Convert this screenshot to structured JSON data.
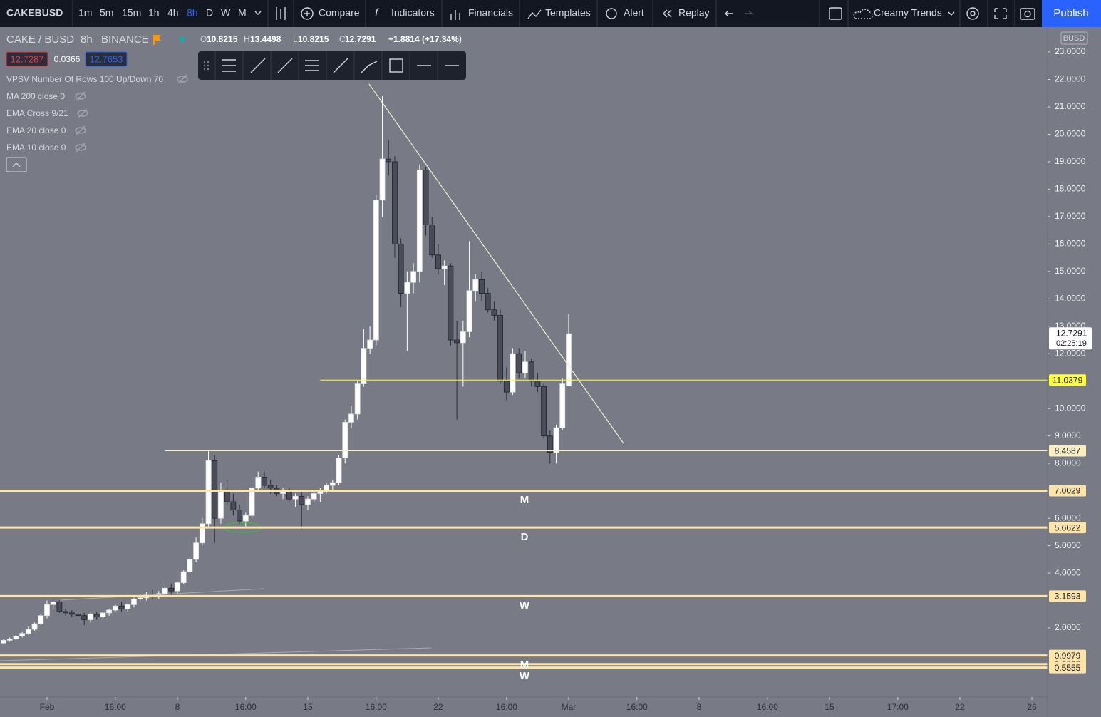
{
  "toolbar": {
    "symbol": "CAKEBUSD",
    "intervals": [
      "1m",
      "5m",
      "15m",
      "1h",
      "4h",
      "8h",
      "D",
      "W",
      "M"
    ],
    "buttons": [
      "Compare",
      "Indicators",
      "Financials",
      "Templates",
      "Alert",
      "Replay"
    ],
    "layout_name": "Creamy Trends",
    "publish": "Publish"
  },
  "legend": {
    "symbol": "CAKE / BUSD",
    "interval": "8h",
    "exchange": "BINANCE",
    "ohlc_keys": [
      "O",
      "H",
      "L",
      "C"
    ],
    "ohlc_values": [
      10.8215,
      13.4498,
      10.8215,
      12.7291
    ],
    "change": "+1.8814 (+17.34%)",
    "bid": 12.7287,
    "spread": 0.0366,
    "ask": 12.7653,
    "indicators": [
      "VPSV Number Of Rows 100 Up/Down 70",
      "MA 200 close 0",
      "EMA Cross 9/21",
      "EMA 20 close 0",
      "EMA 10 close 0"
    ],
    "currency": "BUSD"
  },
  "chart_data": {
    "type": "candlestick",
    "up_color": "#ffffff",
    "down_color": "#4a4d58",
    "xlim": [
      -7.57,
      161.12
    ],
    "ylim": [
      -0.52,
      23.91
    ],
    "xticks": [
      {
        "value": 0,
        "label": "Feb"
      },
      {
        "value": 11,
        "label": "16:00"
      },
      {
        "value": 21,
        "label": "8"
      },
      {
        "value": 32,
        "label": "16:00"
      },
      {
        "value": 42,
        "label": "15"
      },
      {
        "value": 53,
        "label": "16:00"
      },
      {
        "value": 63,
        "label": "22"
      },
      {
        "value": 74,
        "label": "16:00"
      },
      {
        "value": 84,
        "label": "Mar"
      },
      {
        "value": 95,
        "label": "16:00"
      },
      {
        "value": 105,
        "label": "8"
      },
      {
        "value": 116,
        "label": "16:00"
      },
      {
        "value": 126,
        "label": "15"
      },
      {
        "value": 137,
        "label": "17:00"
      },
      {
        "value": 147,
        "label": "22"
      },
      {
        "value": 158.6,
        "label": "26"
      }
    ],
    "yticks": [
      {
        "value": 2,
        "label": "2.0000"
      },
      {
        "value": 4,
        "label": "4.0000"
      },
      {
        "value": 5,
        "label": "5.0000"
      },
      {
        "value": 6,
        "label": "6.0000"
      },
      {
        "value": 8,
        "label": "8.0000"
      },
      {
        "value": 9,
        "label": "9.0000"
      },
      {
        "value": 10,
        "label": "10.0000"
      },
      {
        "value": 12,
        "label": "12.0000"
      },
      {
        "value": 13,
        "label": "13.0000"
      },
      {
        "value": 14,
        "label": "14.0000"
      },
      {
        "value": 15,
        "label": "15.0000"
      },
      {
        "value": 16,
        "label": "16.0000"
      },
      {
        "value": 17,
        "label": "17.0000"
      },
      {
        "value": 18,
        "label": "18.0000"
      },
      {
        "value": 19,
        "label": "19.0000"
      },
      {
        "value": 20,
        "label": "20.0000"
      },
      {
        "value": 21,
        "label": "21.0000"
      },
      {
        "value": 22,
        "label": "22.0000"
      },
      {
        "value": 23,
        "label": "23.0000"
      }
    ],
    "x": [
      -7,
      -6,
      -5,
      -4,
      -3,
      -2,
      -1,
      0,
      1,
      2,
      3,
      4,
      5,
      6,
      7,
      8,
      9,
      10,
      11,
      12,
      13,
      14,
      15,
      16,
      17,
      18,
      19,
      20,
      21,
      22,
      23,
      24,
      25,
      26,
      27,
      28,
      29,
      30,
      31,
      32,
      33,
      34,
      35,
      36,
      37,
      38,
      39,
      40,
      41,
      42,
      43,
      44,
      45,
      46,
      47,
      48,
      49,
      50,
      51,
      52,
      53,
      54,
      55,
      56,
      57,
      58,
      59,
      60,
      61,
      62,
      63,
      64,
      65,
      66,
      67,
      68,
      69,
      70,
      71,
      72,
      73,
      74,
      75,
      76,
      77,
      78,
      79,
      80,
      81,
      82,
      83,
      84
    ],
    "ohlc": [
      [
        1.45,
        1.6,
        1.4,
        1.55
      ],
      [
        1.55,
        1.65,
        1.5,
        1.6
      ],
      [
        1.6,
        1.75,
        1.55,
        1.7
      ],
      [
        1.7,
        1.85,
        1.65,
        1.8
      ],
      [
        1.8,
        2.05,
        1.75,
        1.95
      ],
      [
        1.95,
        2.2,
        1.9,
        2.15
      ],
      [
        2.15,
        2.5,
        2.1,
        2.45
      ],
      [
        2.45,
        3.0,
        2.35,
        2.85
      ],
      [
        2.85,
        3.0,
        2.7,
        2.95
      ],
      [
        2.95,
        3.0,
        2.55,
        2.6
      ],
      [
        2.6,
        2.7,
        2.45,
        2.55
      ],
      [
        2.55,
        2.65,
        2.4,
        2.5
      ],
      [
        2.5,
        2.6,
        2.4,
        2.45
      ],
      [
        2.45,
        2.55,
        2.1,
        2.3
      ],
      [
        2.3,
        2.55,
        2.2,
        2.5
      ],
      [
        2.5,
        2.6,
        2.3,
        2.4
      ],
      [
        2.4,
        2.6,
        2.35,
        2.55
      ],
      [
        2.55,
        2.7,
        2.45,
        2.65
      ],
      [
        2.65,
        2.85,
        2.6,
        2.8
      ],
      [
        2.8,
        2.95,
        2.6,
        2.7
      ],
      [
        2.7,
        2.9,
        2.6,
        2.85
      ],
      [
        2.85,
        3.1,
        2.75,
        3.05
      ],
      [
        3.05,
        3.25,
        2.95,
        3.1
      ],
      [
        3.1,
        3.3,
        3.0,
        3.2
      ],
      [
        3.2,
        3.4,
        3.05,
        3.15
      ],
      [
        3.15,
        3.35,
        3.05,
        3.25
      ],
      [
        3.25,
        3.5,
        3.2,
        3.45
      ],
      [
        3.45,
        3.6,
        3.2,
        3.35
      ],
      [
        3.35,
        3.7,
        3.25,
        3.65
      ],
      [
        3.65,
        4.1,
        3.6,
        4.05
      ],
      [
        4.05,
        4.6,
        3.95,
        4.5
      ],
      [
        4.5,
        5.3,
        4.4,
        5.1
      ],
      [
        5.1,
        6.0,
        5.0,
        5.8
      ],
      [
        5.8,
        8.45,
        5.7,
        8.1
      ],
      [
        8.1,
        8.3,
        5.1,
        6.0
      ],
      [
        6.0,
        7.3,
        5.8,
        7.0
      ],
      [
        7.0,
        7.4,
        6.5,
        6.6
      ],
      [
        6.6,
        6.9,
        6.1,
        6.3
      ],
      [
        6.3,
        6.5,
        5.8,
        5.9
      ],
      [
        5.9,
        6.2,
        5.7,
        6.1
      ],
      [
        6.1,
        7.3,
        6.0,
        7.1
      ],
      [
        7.1,
        7.7,
        7.0,
        7.5
      ],
      [
        7.5,
        7.7,
        7.1,
        7.2
      ],
      [
        7.2,
        7.4,
        6.9,
        7.1
      ],
      [
        7.1,
        7.2,
        6.8,
        6.9
      ],
      [
        6.9,
        7.1,
        6.7,
        7.0
      ],
      [
        7.0,
        7.1,
        6.6,
        6.7
      ],
      [
        6.7,
        6.9,
        6.4,
        6.8
      ],
      [
        6.8,
        7.0,
        5.6,
        6.5
      ],
      [
        6.5,
        6.8,
        6.3,
        6.7
      ],
      [
        6.7,
        7.0,
        6.6,
        6.9
      ],
      [
        6.9,
        7.1,
        6.6,
        7.0
      ],
      [
        7.0,
        7.3,
        6.9,
        7.2
      ],
      [
        7.2,
        7.4,
        7.0,
        7.3
      ],
      [
        7.3,
        8.3,
        7.2,
        8.2
      ],
      [
        8.2,
        9.6,
        8.0,
        9.5
      ],
      [
        9.5,
        10.1,
        9.3,
        9.8
      ],
      [
        9.8,
        11.0,
        9.6,
        10.9
      ],
      [
        10.9,
        12.9,
        10.8,
        12.2
      ],
      [
        12.2,
        13.0,
        12.0,
        12.5
      ],
      [
        12.5,
        17.8,
        12.3,
        17.6
      ],
      [
        17.6,
        21.4,
        17.0,
        19.1
      ],
      [
        19.1,
        19.8,
        18.5,
        19.0
      ],
      [
        19.0,
        19.2,
        15.5,
        16.0
      ],
      [
        16.0,
        16.2,
        13.7,
        14.2
      ],
      [
        14.2,
        15.0,
        12.1,
        14.6
      ],
      [
        14.6,
        15.3,
        14.2,
        15.0
      ],
      [
        15.0,
        18.9,
        14.6,
        18.7
      ],
      [
        18.7,
        18.8,
        16.3,
        16.7
      ],
      [
        16.7,
        17.0,
        15.5,
        15.6
      ],
      [
        15.6,
        16.0,
        14.9,
        15.1
      ],
      [
        15.1,
        15.4,
        14.5,
        15.2
      ],
      [
        15.2,
        15.3,
        12.3,
        12.5
      ],
      [
        12.5,
        13.2,
        9.6,
        12.4
      ],
      [
        12.4,
        13.2,
        10.8,
        12.8
      ],
      [
        12.8,
        16.1,
        12.6,
        14.3
      ],
      [
        14.3,
        14.9,
        13.9,
        14.7
      ],
      [
        14.7,
        15.0,
        13.9,
        14.2
      ],
      [
        14.2,
        14.4,
        13.5,
        13.6
      ],
      [
        13.6,
        13.9,
        13.2,
        13.4
      ],
      [
        13.4,
        13.6,
        10.9,
        11.0
      ],
      [
        11.0,
        11.5,
        10.3,
        10.6
      ],
      [
        10.6,
        12.2,
        10.5,
        12.0
      ],
      [
        12.0,
        12.2,
        11.1,
        11.3
      ],
      [
        11.3,
        12.1,
        11.1,
        11.7
      ],
      [
        11.7,
        11.8,
        10.8,
        11.0
      ],
      [
        11.0,
        11.3,
        10.6,
        10.8
      ],
      [
        10.8,
        10.9,
        8.9,
        9.0
      ],
      [
        9.0,
        9.2,
        8.0,
        8.4
      ],
      [
        8.4,
        9.4,
        8.0,
        9.3
      ],
      [
        9.3,
        11.1,
        9.2,
        10.9
      ],
      [
        10.8215,
        13.4498,
        10.8215,
        12.7291
      ]
    ],
    "levels": [
      {
        "value": 11.0379,
        "color": "#ffff3a",
        "thick": false,
        "start": 44
      },
      {
        "value": 8.4587,
        "color": "#fbefc0",
        "thick": false,
        "start": 19
      },
      {
        "value": 7.0029,
        "color": "#fde4a8",
        "thick": true
      },
      {
        "value": 5.6622,
        "color": "#fde4a8",
        "thick": true
      },
      {
        "value": 3.1593,
        "color": "#fde4a8",
        "thick": true
      },
      {
        "value": 0.9979,
        "color": "#fde4a8",
        "thick": true
      },
      {
        "value": 0.6827,
        "color": "#fde4a8",
        "thick": true
      },
      {
        "value": 0.5555,
        "color": "#fde4a8",
        "thick": true
      }
    ],
    "last": {
      "value": 12.7291,
      "countdown": "02:25:19"
    },
    "annotations": [
      "M",
      "D",
      "W",
      "M",
      "W"
    ]
  }
}
